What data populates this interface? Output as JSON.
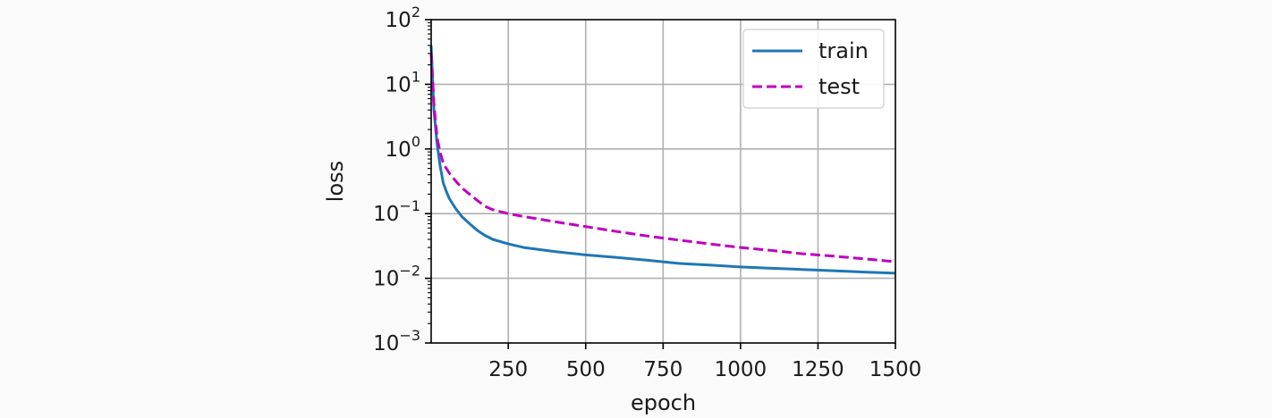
{
  "chart_data": {
    "type": "line",
    "title": "",
    "xlabel": "epoch",
    "ylabel": "loss",
    "xlim": [
      1,
      1500
    ],
    "ylim": [
      0.001,
      100
    ],
    "yscale": "log",
    "grid": true,
    "legend_position": "top-right",
    "x_ticks": [
      250,
      500,
      750,
      1000,
      1250,
      1500
    ],
    "x_tick_labels": [
      "250",
      "500",
      "750",
      "1000",
      "1250",
      "1500"
    ],
    "y_ticks": [
      0.001,
      0.01,
      0.1,
      1,
      10,
      100
    ],
    "y_tick_labels": [
      {
        "base": "10",
        "exp": "−3"
      },
      {
        "base": "10",
        "exp": "−2"
      },
      {
        "base": "10",
        "exp": "−1"
      },
      {
        "base": "10",
        "exp": "0"
      },
      {
        "base": "10",
        "exp": "1"
      },
      {
        "base": "10",
        "exp": "2"
      }
    ],
    "x": [
      1,
      10,
      20,
      30,
      40,
      50,
      60,
      80,
      100,
      125,
      150,
      175,
      200,
      250,
      300,
      400,
      500,
      600,
      700,
      800,
      900,
      1000,
      1100,
      1200,
      1300,
      1400,
      1500
    ],
    "series": [
      {
        "name": "train",
        "color": "#1f77b4",
        "dash": "solid",
        "values": [
          40,
          4.0,
          1.2,
          0.55,
          0.3,
          0.22,
          0.17,
          0.12,
          0.09,
          0.07,
          0.055,
          0.046,
          0.04,
          0.034,
          0.03,
          0.026,
          0.023,
          0.021,
          0.019,
          0.017,
          0.016,
          0.015,
          0.0143,
          0.0137,
          0.0131,
          0.0125,
          0.012
        ]
      },
      {
        "name": "test",
        "color": "#bf00bf",
        "dash": "dashed",
        "values": [
          30,
          5.0,
          1.5,
          0.9,
          0.6,
          0.5,
          0.42,
          0.32,
          0.25,
          0.2,
          0.16,
          0.13,
          0.115,
          0.1,
          0.09,
          0.075,
          0.063,
          0.053,
          0.045,
          0.039,
          0.034,
          0.03,
          0.027,
          0.024,
          0.022,
          0.02,
          0.018
        ]
      }
    ]
  }
}
